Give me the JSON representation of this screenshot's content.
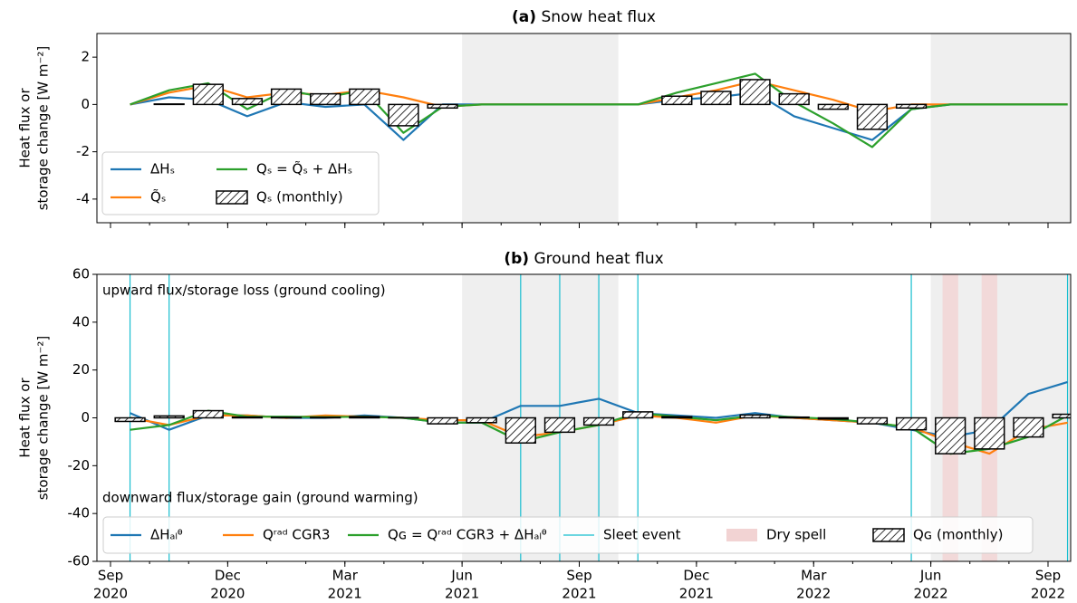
{
  "chart_data": [
    {
      "type": "line",
      "label": "(a)",
      "title": "Snow heat flux",
      "ylabel": [
        "Heat flux or",
        "storage change [W m⁻²]"
      ],
      "x": [
        "2020-09",
        "2020-10",
        "2020-11",
        "2020-12",
        "2021-01",
        "2021-02",
        "2021-03",
        "2021-04",
        "2021-05",
        "2021-06",
        "2021-07",
        "2021-08",
        "2021-09",
        "2021-10",
        "2021-11",
        "2021-12",
        "2022-01",
        "2022-02",
        "2022-03",
        "2022-04",
        "2022-05",
        "2022-06",
        "2022-07",
        "2022-08",
        "2022-09"
      ],
      "xlim": [
        "2020-09",
        "2022-09"
      ],
      "xticks": [
        "2020-09",
        "2020-12",
        "2021-03",
        "2021-06",
        "2021-09",
        "2021-12",
        "2022-03",
        "2022-06",
        "2022-09"
      ],
      "ylim": [
        -5,
        3
      ],
      "yticks": [
        -4,
        -2,
        0,
        2
      ],
      "shaded_periods": [
        {
          "start": "2021-06",
          "end": "2021-09"
        },
        {
          "start": "2022-06",
          "end": "2022-09"
        }
      ],
      "series": [
        {
          "name": "ΔHₛ",
          "color": "#1f77b4",
          "values": [
            0,
            0.3,
            0.2,
            -0.5,
            0.1,
            -0.1,
            0,
            -1.5,
            0,
            0,
            0,
            0,
            0,
            0,
            0.2,
            0.3,
            0.5,
            -0.5,
            -1,
            -1.5,
            -0.2,
            0,
            0,
            0,
            0
          ]
        },
        {
          "name": "Q̃ₛ",
          "color": "#ff7f0e",
          "values": [
            0,
            0.5,
            0.8,
            0.3,
            0.5,
            0.4,
            0.6,
            0.3,
            -0.1,
            0,
            0,
            0,
            0,
            0,
            0.3,
            0.6,
            1.0,
            0.6,
            0.2,
            -0.3,
            0,
            0,
            0,
            0,
            0
          ]
        },
        {
          "name": "Qₛ = Q̃ₛ + ΔHₛ",
          "color": "#2ca02c",
          "values": [
            0,
            0.6,
            0.9,
            -0.2,
            0.6,
            0.3,
            0.6,
            -1.2,
            -0.1,
            0,
            0,
            0,
            0,
            0,
            0.5,
            0.9,
            1.3,
            0.1,
            -0.8,
            -1.8,
            -0.2,
            0,
            0,
            0,
            0
          ]
        }
      ],
      "bars": {
        "name": "Qₛ (monthly)",
        "values": [
          0,
          0.02,
          0.85,
          0.25,
          0.65,
          0.45,
          0.65,
          -0.9,
          -0.15,
          0,
          0,
          0,
          0,
          0,
          0.35,
          0.55,
          1.05,
          0.45,
          -0.2,
          -1.05,
          -0.15,
          0,
          0,
          0,
          0
        ]
      }
    },
    {
      "type": "line",
      "label": "(b)",
      "title": "Ground heat flux",
      "ylabel": [
        "Heat flux or",
        "storage change [W m⁻²]"
      ],
      "annotations": [
        "upward flux/storage loss (ground cooling)",
        "downward flux/storage gain (ground warming)"
      ],
      "x": [
        "2020-09",
        "2020-10",
        "2020-11",
        "2020-12",
        "2021-01",
        "2021-02",
        "2021-03",
        "2021-04",
        "2021-05",
        "2021-06",
        "2021-07",
        "2021-08",
        "2021-09",
        "2021-10",
        "2021-11",
        "2021-12",
        "2022-01",
        "2022-02",
        "2022-03",
        "2022-04",
        "2022-05",
        "2022-06",
        "2022-07",
        "2022-08",
        "2022-09"
      ],
      "xlim": [
        "2020-09",
        "2022-09"
      ],
      "xticks": [
        {
          "value": "2020-09",
          "label": [
            "Sep",
            "2020"
          ]
        },
        {
          "value": "2020-12",
          "label": [
            "Dec",
            "2020"
          ]
        },
        {
          "value": "2021-03",
          "label": [
            "Mar",
            "2021"
          ]
        },
        {
          "value": "2021-06",
          "label": [
            "Jun",
            "2021"
          ]
        },
        {
          "value": "2021-09",
          "label": [
            "Sep",
            "2021"
          ]
        },
        {
          "value": "2021-12",
          "label": [
            "Dec",
            "2021"
          ]
        },
        {
          "value": "2022-03",
          "label": [
            "Mar",
            "2022"
          ]
        },
        {
          "value": "2022-06",
          "label": [
            "Jun",
            "2022"
          ]
        },
        {
          "value": "2022-09",
          "label": [
            "Sep",
            "2022"
          ]
        }
      ],
      "ylim": [
        -60,
        60
      ],
      "yticks": [
        -60,
        -40,
        -20,
        0,
        20,
        40,
        60
      ],
      "shaded_periods": [
        {
          "start": "2021-06",
          "end": "2021-09"
        },
        {
          "start": "2022-06",
          "end": "2022-09"
        }
      ],
      "series": [
        {
          "name": "ΔHₐₗᶿ",
          "color": "#1f77b4",
          "values": [
            2,
            -5,
            1,
            1,
            0,
            0,
            1,
            0,
            -2,
            -2,
            5,
            5,
            8,
            2,
            1,
            0,
            2,
            0,
            -1,
            -2,
            -5,
            -8,
            -5,
            10,
            15
          ]
        },
        {
          "name": "Qʳᵃᵈ CGR3",
          "color": "#ff7f0e",
          "values": [
            0,
            -3,
            1,
            1,
            0,
            1,
            0.5,
            0,
            -1,
            -1,
            -8,
            -6,
            -3,
            1,
            0,
            -2,
            1,
            0,
            -1,
            -2,
            -4,
            -10,
            -15,
            -5,
            -2
          ]
        },
        {
          "name": "Qɢ = Qʳᵃᵈ CGR3 + ΔHₐₗᶿ",
          "color": "#2ca02c",
          "values": [
            -5,
            -3,
            3,
            0.5,
            0.5,
            0.3,
            0.5,
            0,
            -2,
            -2,
            -10,
            -6,
            -3,
            2,
            0.5,
            -1,
            1,
            0.3,
            -0.5,
            -2,
            -4,
            -15,
            -13,
            -8,
            1
          ]
        }
      ],
      "sleet_events": {
        "name": "Sleet event",
        "color": "#17becf",
        "dates": [
          "2020-09",
          "2020-10",
          "2021-07",
          "2021-08",
          "2021-09",
          "2021-10",
          "2022-05",
          "2022-09"
        ]
      },
      "dry_spells": {
        "name": "Dry spell",
        "color": "#f2d3d3",
        "periods": [
          {
            "start": "2022-06",
            "end": "2022-06"
          },
          {
            "start": "2022-07",
            "end": "2022-07"
          }
        ]
      },
      "bars": {
        "name": "Qɢ (monthly)",
        "values": [
          -1.5,
          0.8,
          3,
          0.3,
          0.2,
          0.2,
          0.5,
          0.1,
          -2.5,
          -2,
          -10.5,
          -6,
          -3,
          2.5,
          0.5,
          0,
          1.2,
          0.3,
          -0.5,
          -2.5,
          -5,
          -15,
          -13,
          -8,
          1.5
        ]
      }
    }
  ]
}
